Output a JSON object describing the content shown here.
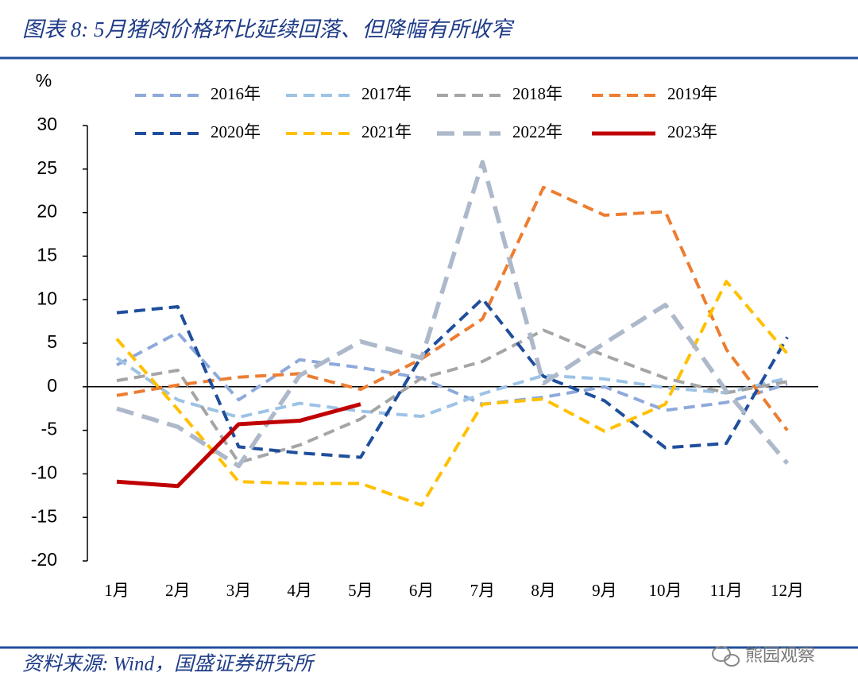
{
  "header": {
    "title": "图表 8:  5月猪肉价格环比延续回落、但降幅有所收窄"
  },
  "chart_data": {
    "type": "line",
    "y_label": "%",
    "categories": [
      "1月",
      "2月",
      "3月",
      "4月",
      "5月",
      "6月",
      "7月",
      "8月",
      "9月",
      "10月",
      "11月",
      "12月"
    ],
    "ylim": [
      -20,
      30
    ],
    "yticks": [
      -20,
      -15,
      -10,
      -5,
      0,
      5,
      10,
      15,
      20,
      25,
      30
    ],
    "series": [
      {
        "name": "2016年",
        "color": "#8ea9db",
        "style": "dashed",
        "values": [
          2.5,
          6.2,
          -1.5,
          3.1,
          2.2,
          1.0,
          -2.0,
          -1.2,
          0.0,
          -2.7,
          -1.8,
          0.3
        ]
      },
      {
        "name": "2017年",
        "color": "#9dc3e6",
        "style": "dashed",
        "values": [
          3.3,
          -1.5,
          -3.5,
          -1.9,
          -2.8,
          -3.4,
          -0.8,
          1.3,
          0.9,
          -0.1,
          -0.7,
          1.0
        ]
      },
      {
        "name": "2018年",
        "color": "#a5a5a5",
        "style": "dashed",
        "values": [
          0.7,
          1.9,
          -8.7,
          -6.7,
          -3.7,
          1.0,
          2.9,
          6.5,
          3.6,
          1.0,
          -0.7,
          0.6
        ]
      },
      {
        "name": "2019年",
        "color": "#ed7d31",
        "style": "dashed",
        "values": [
          -1.0,
          0.2,
          1.1,
          1.5,
          -0.3,
          3.2,
          7.8,
          22.9,
          19.7,
          20.1,
          4.3,
          -5.0
        ]
      },
      {
        "name": "2020年",
        "color": "#1f4e9c",
        "style": "dashed",
        "values": [
          8.5,
          9.2,
          -6.9,
          -7.6,
          -8.1,
          3.5,
          10.1,
          1.2,
          -1.6,
          -7.0,
          -6.5,
          5.7
        ]
      },
      {
        "name": "2021年",
        "color": "#ffc000",
        "style": "dashed",
        "values": [
          5.5,
          -2.6,
          -10.9,
          -11.1,
          -11.1,
          -13.6,
          -2.0,
          -1.4,
          -5.1,
          -2.0,
          12.1,
          3.8
        ]
      },
      {
        "name": "2022年",
        "color": "#adb9ca",
        "style": "dashed-bold",
        "values": [
          -2.5,
          -4.6,
          -9.1,
          1.3,
          5.2,
          3.3,
          25.8,
          0.4,
          5.0,
          9.4,
          -0.5,
          -8.8
        ]
      },
      {
        "name": "2023年",
        "color": "#c00000",
        "style": "solid",
        "values": [
          -10.9,
          -11.4,
          -4.3,
          -3.9,
          -2.0,
          null,
          null,
          null,
          null,
          null,
          null,
          null
        ]
      }
    ]
  },
  "footer": {
    "source": "资料来源:  Wind，国盛证券研究所",
    "watermark": "熊园观察"
  }
}
